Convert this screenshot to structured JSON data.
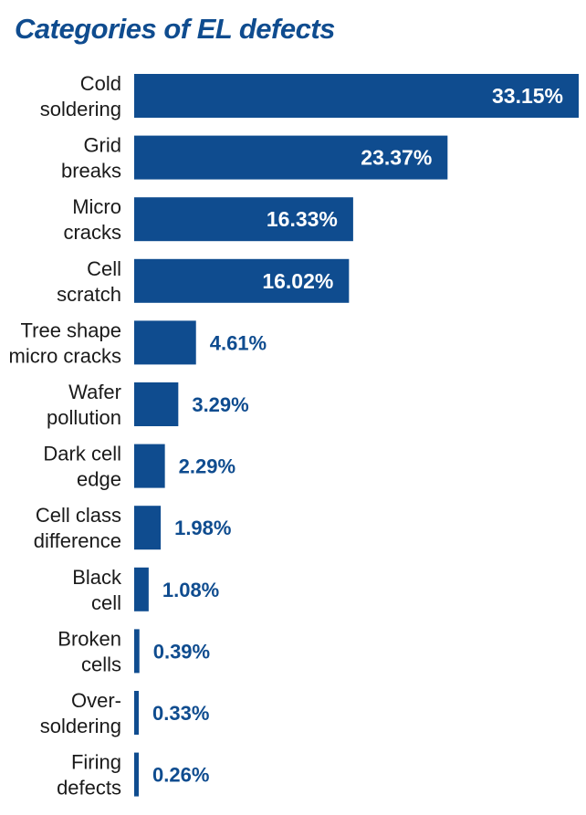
{
  "chart_data": {
    "type": "bar",
    "orientation": "horizontal",
    "title": "Categories of EL defects",
    "categories": [
      [
        "Cold",
        "soldering"
      ],
      [
        "Grid",
        "breaks"
      ],
      [
        "Micro",
        "cracks"
      ],
      [
        "Cell",
        "scratch"
      ],
      [
        "Tree shape",
        "micro cracks"
      ],
      [
        "Wafer",
        "pollution"
      ],
      [
        "Dark cell",
        "edge"
      ],
      [
        "Cell class",
        "difference"
      ],
      [
        "Black",
        "cell"
      ],
      [
        "Broken",
        "cells"
      ],
      [
        "Over-",
        "soldering"
      ],
      [
        "Firing",
        "defects"
      ]
    ],
    "values": [
      33.15,
      23.37,
      16.33,
      16.02,
      4.61,
      3.29,
      2.29,
      1.98,
      1.08,
      0.39,
      0.33,
      0.26
    ],
    "value_labels": [
      "33.15%",
      "23.37%",
      "16.33%",
      "16.02%",
      "4.61%",
      "3.29%",
      "2.29%",
      "1.98%",
      "1.08%",
      "0.39%",
      "0.33%",
      "0.26%"
    ],
    "xlim": [
      0,
      33.15
    ],
    "unit": "%",
    "color": "#0f4c8f",
    "label_color": "#0f4c8f",
    "grid": false
  }
}
